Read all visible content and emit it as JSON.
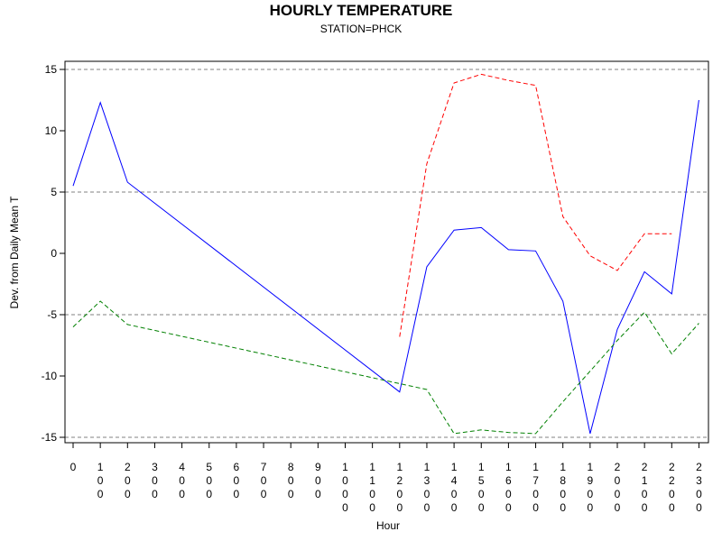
{
  "chart_data": {
    "type": "line",
    "title": "HOURLY TEMPERATURE",
    "subtitle": "STATION=PHCK",
    "xlabel": "Hour",
    "ylabel": "Dev. from Daily Mean T",
    "xlim": [
      0,
      2300
    ],
    "ylim": [
      -15,
      15
    ],
    "yticks": [
      -15,
      -10,
      -5,
      0,
      5,
      10,
      15
    ],
    "xticks": [
      0,
      100,
      200,
      300,
      400,
      500,
      600,
      700,
      800,
      900,
      1000,
      1100,
      1200,
      1300,
      1400,
      1500,
      1600,
      1700,
      1800,
      1900,
      2000,
      2100,
      2200,
      2300
    ],
    "reference_lines": [
      -15,
      -5,
      5,
      15
    ],
    "grid": false,
    "legend": "none",
    "series": [
      {
        "color": "#0000ff",
        "dash": "solid",
        "x": [
          0,
          100,
          200,
          1200,
          1300,
          1400,
          1500,
          1600,
          1700,
          1800,
          1900,
          2000,
          2100,
          2200,
          2300
        ],
        "values": [
          5.5,
          12.3,
          5.8,
          -11.3,
          -1.1,
          1.9,
          2.1,
          0.3,
          0.2,
          -3.9,
          -14.7,
          -6.2,
          -1.5,
          -3.3,
          12.5
        ]
      },
      {
        "color": "#ff0000",
        "dash": "dashed",
        "x": [
          1200,
          1300,
          1400,
          1500,
          1600,
          1700,
          1800,
          1900,
          2000,
          2100,
          2200
        ],
        "values": [
          -6.8,
          7.3,
          13.9,
          14.6,
          14.1,
          13.7,
          3.0,
          -0.2,
          -1.4,
          1.6,
          1.6
        ]
      },
      {
        "color": "#008000",
        "dash": "dashed",
        "x": [
          0,
          100,
          200,
          1300,
          1400,
          1500,
          1600,
          1700,
          1800,
          1900,
          2000,
          2100,
          2200,
          2300
        ],
        "values": [
          -6.0,
          -3.9,
          -5.8,
          -11.1,
          -14.7,
          -14.4,
          -14.6,
          -14.7,
          -12.1,
          -9.6,
          -7.1,
          -4.8,
          -8.2,
          -5.7
        ]
      }
    ]
  }
}
